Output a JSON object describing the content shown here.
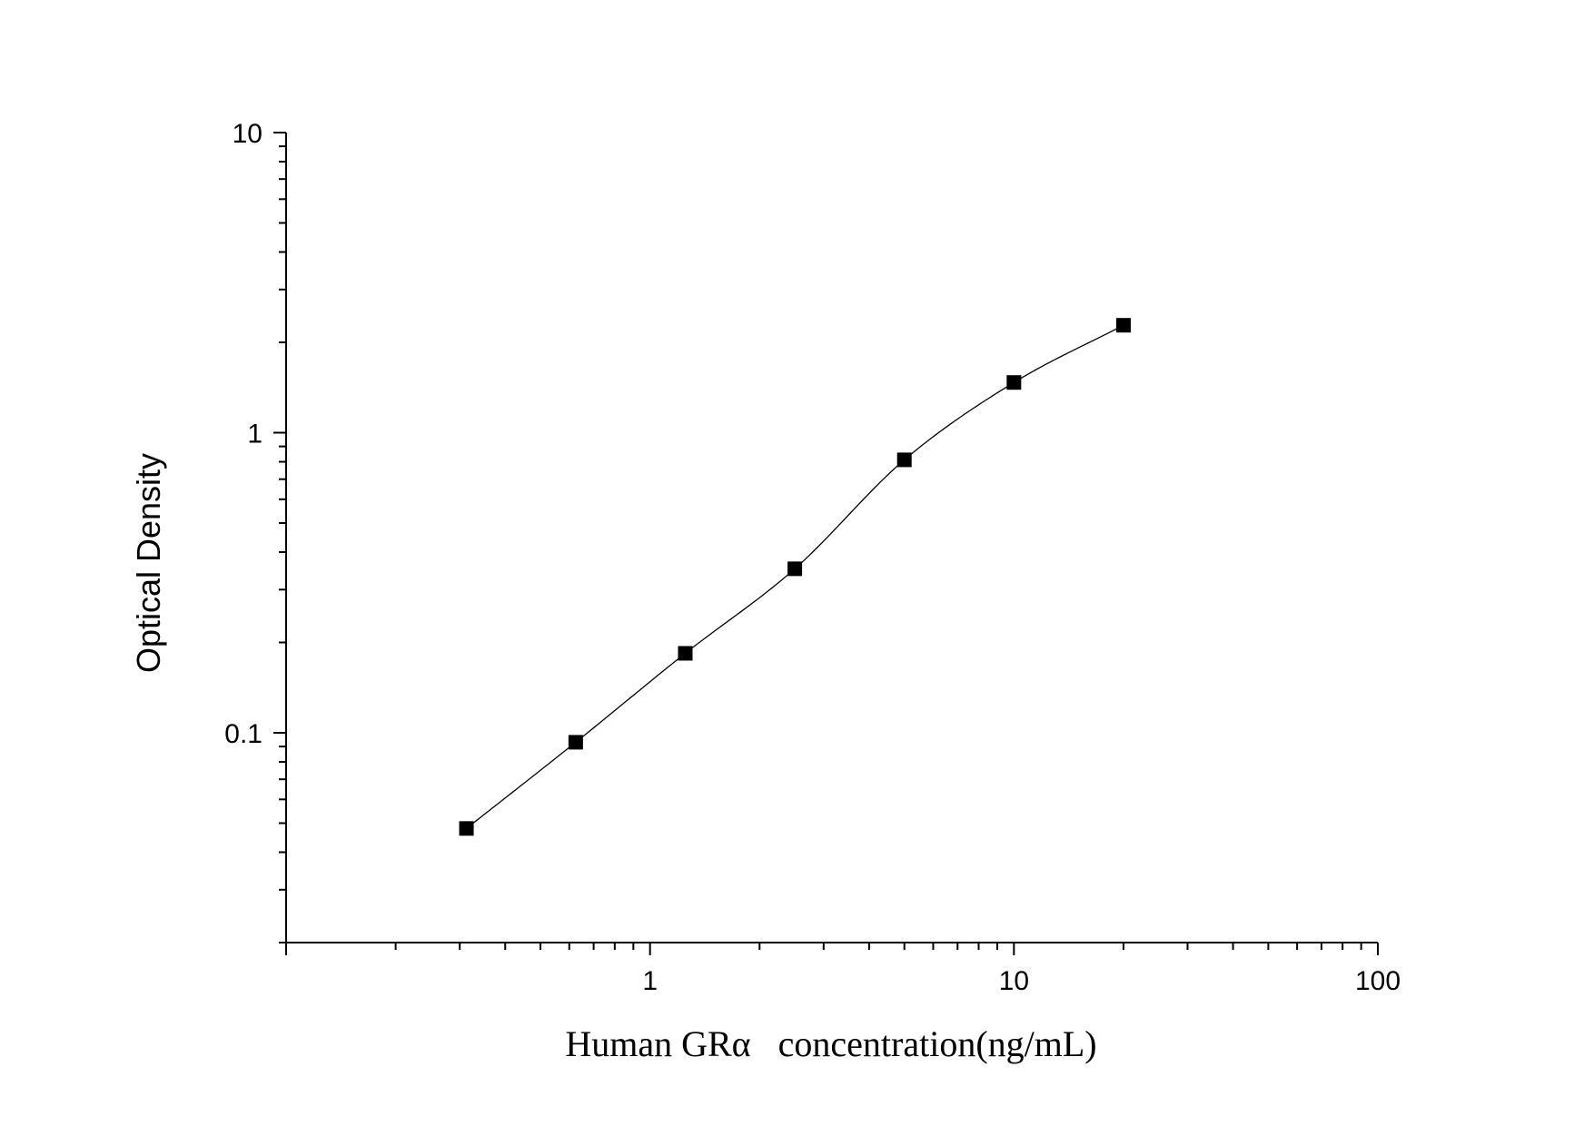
{
  "chart_data": {
    "type": "scatter",
    "xlabel": "Human GRα   concentration(ng/mL)",
    "ylabel": "Optical Density",
    "x_scale": "log",
    "y_scale": "log",
    "xlim": [
      0.1,
      100
    ],
    "ylim": [
      0.02,
      10
    ],
    "x_tick_labels": [
      "1",
      "10",
      "100"
    ],
    "y_tick_labels": [
      "0.1",
      "1",
      "10"
    ],
    "grid": false,
    "legend": "none",
    "marker": "square",
    "fit_curve": true,
    "colors": {
      "marker": "#000000",
      "curve": "#000000",
      "axis": "#000000"
    },
    "series": [
      {
        "x": [
          0.313,
          0.625,
          1.25,
          2.5,
          5,
          10,
          20
        ],
        "y": [
          0.048,
          0.093,
          0.184,
          0.352,
          0.812,
          1.47,
          2.28
        ]
      }
    ]
  }
}
